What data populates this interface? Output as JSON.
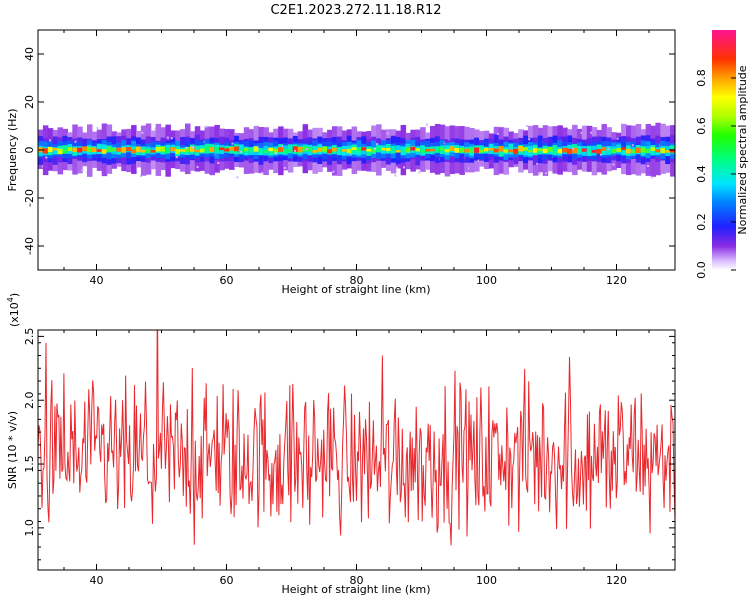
{
  "title": "C2E1.2023.272.11.18.R12",
  "chart_data": [
    {
      "type": "heatmap",
      "xlabel": "Height of straight line (km)",
      "ylabel": "Frequency (Hz)",
      "xlim": [
        31,
        129
      ],
      "ylim": [
        -50,
        50
      ],
      "xticks": [
        40,
        60,
        80,
        100,
        120
      ],
      "yticks": [
        40,
        20,
        0,
        -20,
        -40
      ],
      "band_center_hz": 0,
      "colorbar": {
        "label": "Normalized spectral amplitude",
        "range": [
          0.0,
          1.0
        ],
        "ticks": [
          "0.0",
          "0.2",
          "0.4",
          "0.6",
          "0.8"
        ],
        "colormap": [
          "#ffffff",
          "#c8a0ff",
          "#8a2be2",
          "#0000ff",
          "#00bfff",
          "#00ffff",
          "#00ff7f",
          "#00ff00",
          "#adff2f",
          "#ffff00",
          "#ffa500",
          "#ff4500",
          "#ff0000",
          "#ff1493"
        ]
      }
    },
    {
      "type": "line",
      "xlabel": "Height of straight line (km)",
      "ylabel": "SNR (10 * v/v)",
      "multiplier_base": "(x10",
      "multiplier_exp": "4",
      "multiplier_close": ")",
      "xlim": [
        31,
        129
      ],
      "ylim": [
        0.67,
        2.55
      ],
      "xticks": [
        40,
        60,
        80,
        100,
        120
      ],
      "yticks": [
        "2.5",
        "2.0",
        "1.5",
        "1.0"
      ],
      "series_color": "#e8282d",
      "mean": 1.55,
      "spread": 0.28
    }
  ]
}
